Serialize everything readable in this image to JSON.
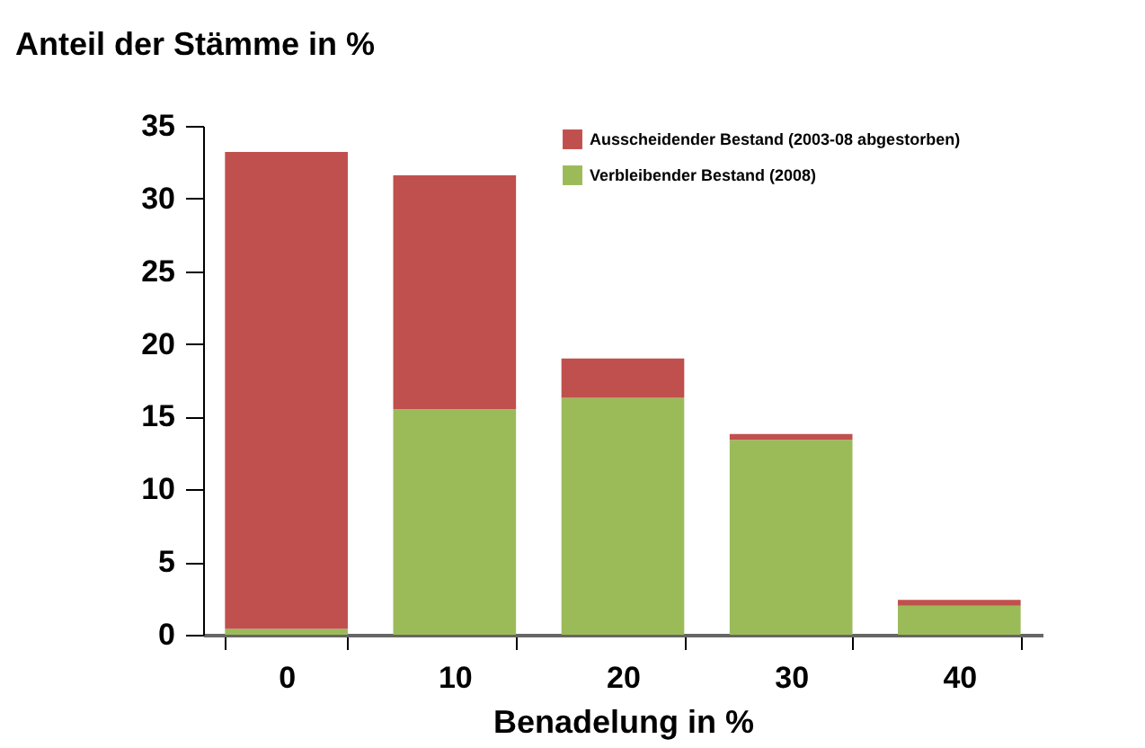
{
  "chart_data": {
    "type": "bar",
    "stacked": true,
    "ylabel": "Anteil der Stämme in %",
    "xlabel": "Benadelung in %",
    "categories": [
      "0",
      "10",
      "20",
      "30",
      "40"
    ],
    "series": [
      {
        "name": "Verbleibender Bestand (2008)",
        "color": "#9bbb59",
        "values": [
          0.4,
          15.5,
          16.3,
          13.4,
          2.0
        ]
      },
      {
        "name": "Ausscheidender Bestand (2003-08 abgestorben)",
        "color": "#c0504d",
        "values": [
          32.8,
          16.1,
          2.7,
          0.4,
          0.4
        ]
      }
    ],
    "ylim": [
      0,
      35
    ],
    "yticks": [
      0,
      5,
      10,
      15,
      20,
      25,
      30,
      35
    ],
    "grid": false,
    "legend": "top right"
  }
}
